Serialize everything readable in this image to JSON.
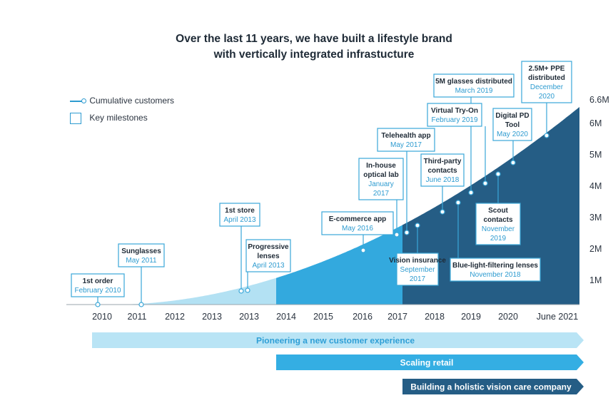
{
  "title_line1": "Over the last 11 years, we have built a lifestyle brand",
  "title_line2": "with vertically integrated infrastucture",
  "legend": {
    "customers": "Cumulative customers",
    "milestones": "Key milestones"
  },
  "colors": {
    "era1": "#b3e1f3",
    "era2": "#33a9de",
    "era3": "#255d85",
    "box_border": "#3aa7d8",
    "date_text": "#2d9bd0",
    "arrow1": "#b9e4f5",
    "arrow1_text": "#2f9fd6",
    "arrow2": "#34aee3",
    "arrow3": "#255d85"
  },
  "chart_data": {
    "type": "area",
    "title": "Over the last 11 years, we have built a lifestyle brand with vertically integrated infrastucture",
    "x_ticks": [
      "2010",
      "2011",
      "2012",
      "2013",
      "2013",
      "2014",
      "2015",
      "2016",
      "2017",
      "2018",
      "2019",
      "2020",
      "June 2021"
    ],
    "y_ticks": [
      "1M",
      "2M",
      "3M",
      "4M",
      "5M",
      "6M",
      "6.6M"
    ],
    "series": [
      {
        "name": "Cumulative customers",
        "x": [
          "2010",
          "2011",
          "2012",
          "2013",
          "2014",
          "2015",
          "2016",
          "2017",
          "2018",
          "2019",
          "2020",
          "June 2021"
        ],
        "values_millions": [
          0,
          0,
          0.05,
          0.25,
          0.6,
          1.0,
          1.5,
          2.2,
          3.0,
          3.9,
          4.9,
          6.6
        ]
      }
    ],
    "milestones": [
      {
        "label": "1st order",
        "date": "February 2010"
      },
      {
        "label": "Sunglasses",
        "date": "May 2011"
      },
      {
        "label": "1st store",
        "date": "April 2013"
      },
      {
        "label": "Progressive lenses",
        "date": "April 2013"
      },
      {
        "label": "E-commerce app",
        "date": "May 2016"
      },
      {
        "label": "In-house optical lab",
        "date": "January 2017"
      },
      {
        "label": "Telehealth app",
        "date": "May 2017"
      },
      {
        "label": "Vision insurance",
        "date": "September 2017"
      },
      {
        "label": "Third-party contacts",
        "date": "June 2018"
      },
      {
        "label": "Blue-light-filtering lenses",
        "date": "November 2018"
      },
      {
        "label": "5M glasses distributed",
        "date": "March 2019"
      },
      {
        "label": "Virtual Try-On",
        "date": "February 2019"
      },
      {
        "label": "Scout contacts",
        "date": "November 2019"
      },
      {
        "label": "Digital PD Tool",
        "date": "May 2020"
      },
      {
        "label": "2.5M+ PPE distributed",
        "date": "December 2020"
      }
    ],
    "phases": [
      {
        "label": "Pioneering a new customer experience",
        "start": "2010",
        "end": "June 2021"
      },
      {
        "label": "Scaling retail",
        "start": "2014",
        "end": "June 2021"
      },
      {
        "label": "Building a holistic vision care company",
        "start": "2017",
        "end": "June 2021"
      }
    ]
  }
}
